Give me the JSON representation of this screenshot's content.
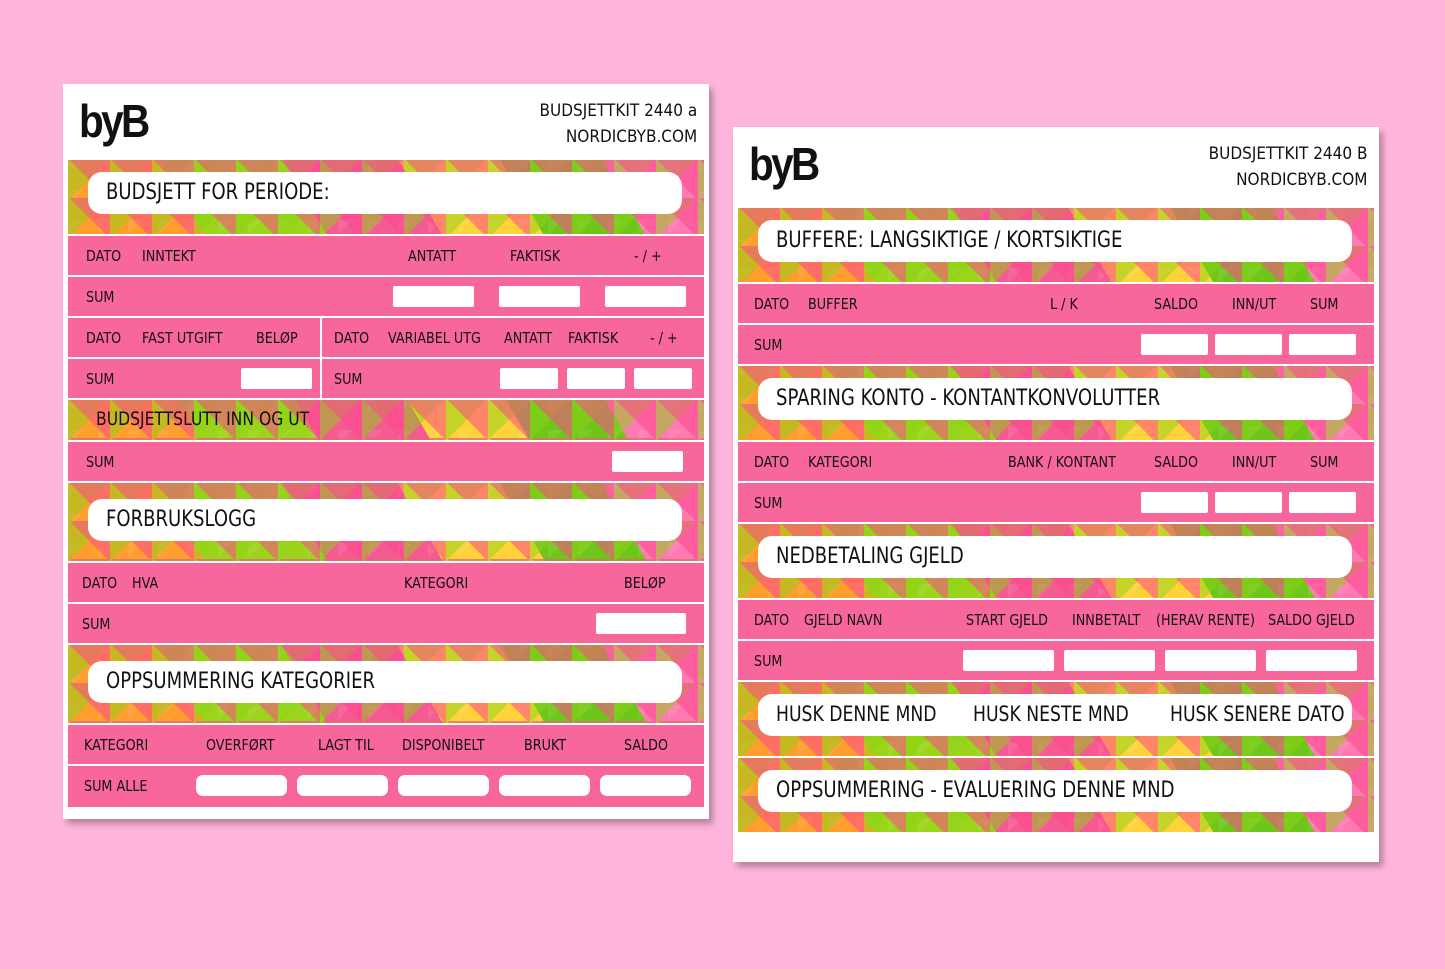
{
  "background_color": "#ffb5db",
  "row_color": "#f7679b",
  "sheet_a": {
    "logo": "byB",
    "code": "BUDSJETTKIT 2440 a",
    "site": "NORDICBYB.COM",
    "banner1": "BUDSJETT FOR PERIODE:",
    "row_income_headers": [
      "DATO",
      "INNTEKT",
      "ANTATT",
      "FAKTISK",
      "- / +"
    ],
    "sum": "SUM",
    "row_fixed_headers": [
      "DATO",
      "FAST UTGIFT",
      "BELØP"
    ],
    "row_variable_headers": [
      "DATO",
      "VARIABEL UTG",
      "ANTATT",
      "FAKTISK",
      "- / +"
    ],
    "banner2": "BUDSJETTSLUTT INN OG UT",
    "banner3": "FORBRUKSLOGG",
    "row_log_headers": [
      "DATO",
      "HVA",
      "KATEGORI",
      "BELØP"
    ],
    "banner4": "OPPSUMMERING KATEGORIER",
    "row_cat_headers": [
      "KATEGORI",
      "OVERFØRT",
      "LAGT TIL",
      "DISPONIBELT",
      "BRUKT",
      "SALDO"
    ],
    "sum_all": "SUM ALLE"
  },
  "sheet_b": {
    "logo": "byB",
    "code": "BUDSJETTKIT 2440 B",
    "site": "NORDICBYB.COM",
    "banner1": "BUFFERE: LANGSIKTIGE / KORTSIKTIGE",
    "row_buffer_headers": [
      "DATO",
      "BUFFER",
      "L / K",
      "SALDO",
      "INN/UT",
      "SUM"
    ],
    "sum": "SUM",
    "banner2": "SPARING KONTO - KONTANTKONVOLUTTER",
    "row_saving_headers": [
      "DATO",
      "KATEGORI",
      "BANK / KONTANT",
      "SALDO",
      "INN/UT",
      "SUM"
    ],
    "banner3": "NEDBETALING GJELD",
    "row_debt_headers": [
      "DATO",
      "GJELD NAVN",
      "START GJELD",
      "INNBETALT",
      "(HERAV RENTE)",
      "SALDO GJELD"
    ],
    "banner4": [
      "HUSK DENNE MND",
      "HUSK NESTE MND",
      "HUSK SENERE DATO"
    ],
    "banner5": "OPPSUMMERING - EVALUERING DENNE MND"
  }
}
